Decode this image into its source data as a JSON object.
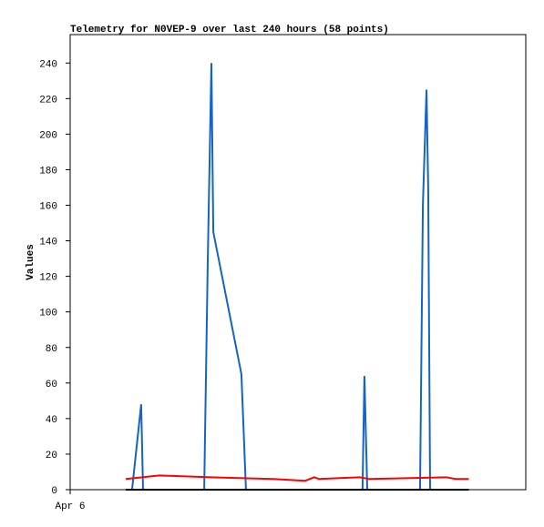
{
  "chart_data": {
    "type": "line",
    "title": "Telemetry for N0VEP-9 over last 240 hours (58 points)",
    "y_label": "Values",
    "xlim": [
      0,
      240
    ],
    "xticks": [
      {
        "value": 0,
        "label": "Apr 6"
      }
    ],
    "ylim": [
      0,
      256
    ],
    "yticks": [
      0,
      20,
      40,
      60,
      80,
      100,
      120,
      140,
      160,
      180,
      200,
      220,
      240
    ],
    "grid": false,
    "series": [
      {
        "color": "#1565c0",
        "x": [
          32.6,
          37.4,
          38.4,
          70.6,
          72.5,
          74.4,
          75.4,
          90.2,
          92.6,
          154,
          155,
          156.5,
          184.3,
          185.8,
          187.7,
          188.6,
          189.6
        ],
        "values": [
          0,
          48,
          0,
          0,
          130,
          240,
          145,
          65,
          0,
          0,
          64,
          0,
          0,
          160,
          225,
          170,
          0
        ]
      },
      {
        "color": "#ff0000",
        "x": [
          29.3,
          47,
          74.4,
          107,
          123.8,
          128.6,
          131,
          152.6,
          157.4,
          198,
          203,
          210
        ],
        "values": [
          6,
          8,
          7,
          6,
          5,
          7,
          6,
          7,
          6,
          7,
          6,
          6
        ]
      },
      {
        "color": "#000000",
        "x": [
          29.3,
          210
        ],
        "values": [
          0,
          0
        ]
      }
    ]
  }
}
